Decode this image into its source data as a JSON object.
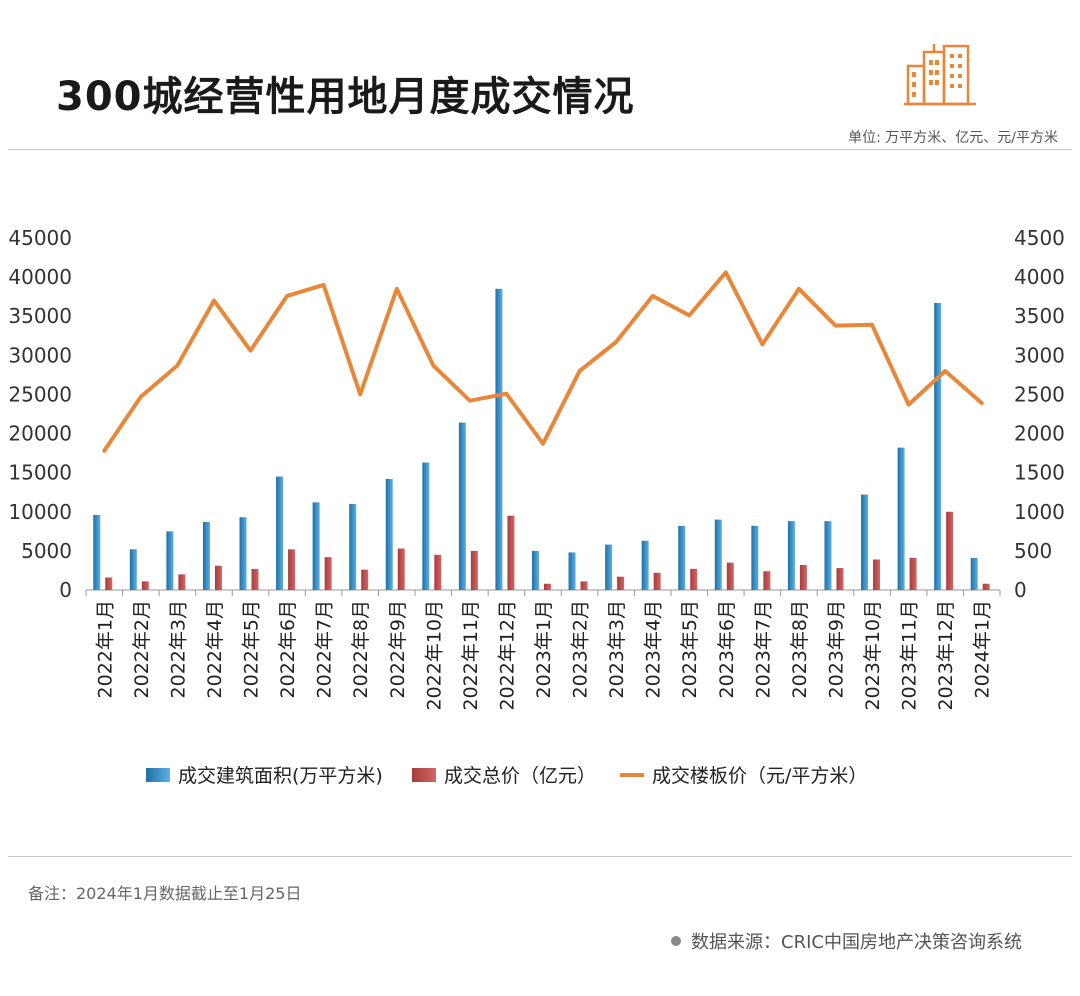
{
  "header": {
    "title": "300城经营性用地月度成交情况",
    "unit": "单位: 万平方米、亿元、元/平方米"
  },
  "footer": {
    "note": "备注：2024年1月数据截止至1月25日",
    "source": "数据来源：CRIC中国房地产决策咨询系统"
  },
  "colors": {
    "area": "#2e86c1",
    "total": "#b84a4a",
    "price": "#e8873a",
    "accent": "#e8873a"
  },
  "icons": {
    "logo": "city-buildings-icon"
  },
  "chart_data": {
    "type": "bar",
    "categories": [
      "2022年1月",
      "2022年2月",
      "2022年3月",
      "2022年4月",
      "2022年5月",
      "2022年6月",
      "2022年7月",
      "2022年8月",
      "2022年9月",
      "2022年10月",
      "2022年11月",
      "2022年12月",
      "2023年1月",
      "2023年2月",
      "2023年3月",
      "2023年4月",
      "2023年5月",
      "2023年6月",
      "2023年7月",
      "2023年8月",
      "2023年9月",
      "2023年10月",
      "2023年11月",
      "2023年12月",
      "2024年1月"
    ],
    "series": [
      {
        "name": "成交建筑面积(万平方米)",
        "type": "bar",
        "axis": "left",
        "values": [
          9600,
          5200,
          7500,
          8700,
          9300,
          14500,
          11200,
          11000,
          14200,
          16300,
          21400,
          38500,
          5000,
          4800,
          5800,
          6300,
          8200,
          9000,
          8200,
          8800,
          8800,
          12200,
          18200,
          36700,
          4100
        ]
      },
      {
        "name": "成交总价（亿元）",
        "type": "bar",
        "axis": "left",
        "values": [
          1600,
          1100,
          2000,
          3100,
          2700,
          5200,
          4200,
          2600,
          5300,
          4500,
          5000,
          9500,
          800,
          1100,
          1700,
          2200,
          2700,
          3500,
          2400,
          3200,
          2800,
          3900,
          4100,
          10000,
          800
        ]
      },
      {
        "name": "成交楼板价（元/平方米）",
        "type": "line",
        "axis": "right",
        "values": [
          1780,
          2470,
          2870,
          3700,
          3060,
          3760,
          3900,
          2500,
          3850,
          2870,
          2420,
          2510,
          1870,
          2800,
          3170,
          3760,
          3510,
          4060,
          3140,
          3850,
          3380,
          3390,
          2370,
          2800,
          2390
        ]
      }
    ],
    "ylim_left": [
      0,
      45000
    ],
    "yticks_left": [
      0,
      5000,
      10000,
      15000,
      20000,
      25000,
      30000,
      35000,
      40000,
      45000
    ],
    "ylim_right": [
      0,
      4500
    ],
    "yticks_right": [
      0,
      500,
      1000,
      1500,
      2000,
      2500,
      3000,
      3500,
      4000,
      4500
    ],
    "grid": false,
    "legend_position": "bottom"
  }
}
